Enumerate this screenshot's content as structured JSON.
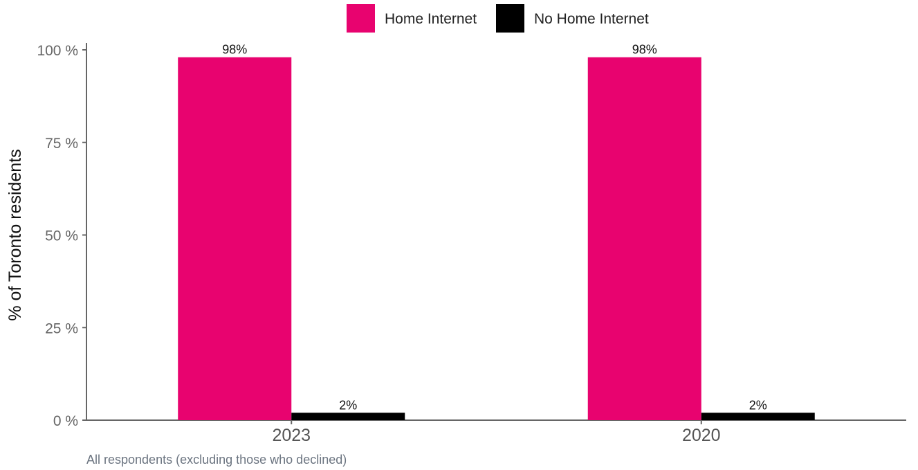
{
  "chart_data": {
    "type": "bar",
    "categories": [
      "2023",
      "2020"
    ],
    "series": [
      {
        "name": "Home Internet",
        "values": [
          98,
          98
        ],
        "labels": [
          "98%",
          "98%"
        ],
        "color": "#e8036f"
      },
      {
        "name": "No Home Internet",
        "values": [
          2,
          2
        ],
        "labels": [
          "2%",
          "2%"
        ],
        "color": "#000000"
      }
    ],
    "ylabel": "% of Toronto residents",
    "ylim": [
      0,
      100
    ],
    "yticks": [
      0,
      25,
      50,
      75,
      100
    ],
    "ytick_labels": [
      "0 %",
      "25 %",
      "50 %",
      "75 %",
      "100 %"
    ],
    "legend_position": "top-center",
    "grid": false,
    "caption": "All respondents (excluding those who declined)"
  }
}
